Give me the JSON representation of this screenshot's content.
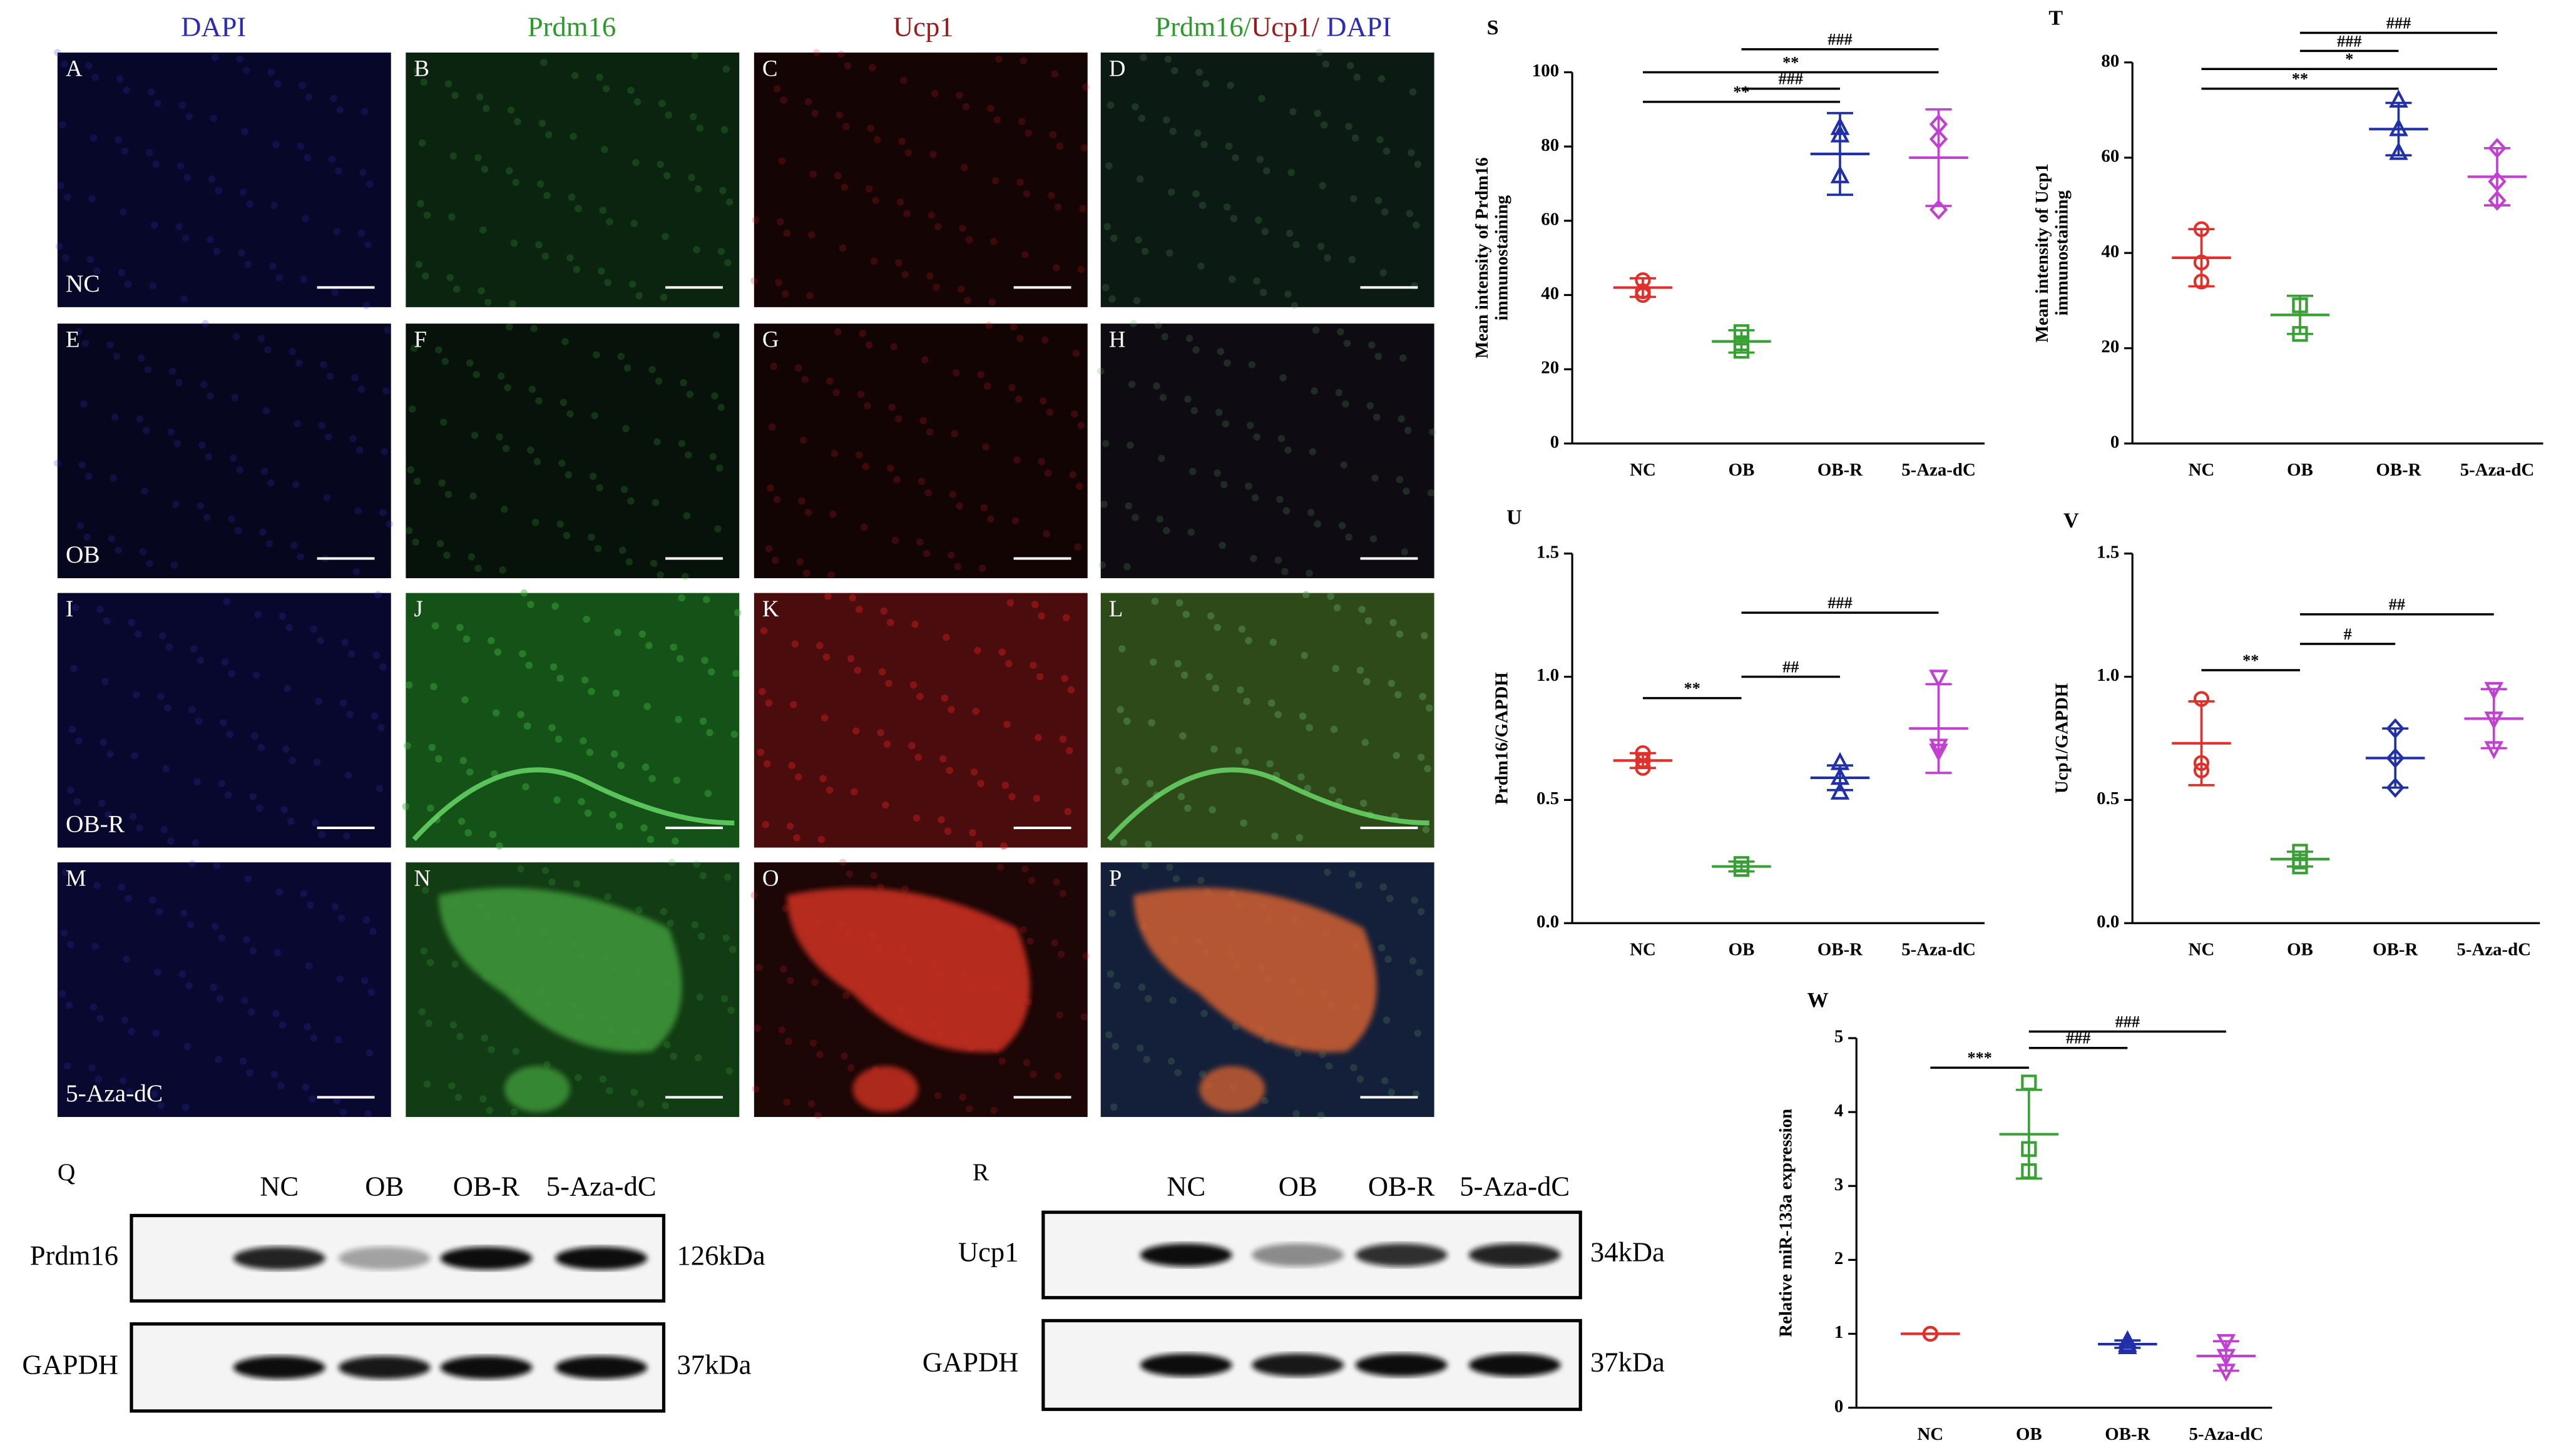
{
  "micrographs": {
    "columns": [
      "DAPI",
      "Prdm16",
      "Ucp1"
    ],
    "merged_column": [
      "Prdm16/",
      "Ucp1/",
      " DAPI"
    ],
    "column_colors": [
      "#2b2bb8",
      "#2a9a2a",
      "#a01818"
    ],
    "rows": [
      "NC",
      "OB",
      "OB-R",
      "5-Aza-dC"
    ],
    "panels": [
      "A",
      "B",
      "C",
      "D",
      "E",
      "F",
      "G",
      "H",
      "I",
      "J",
      "K",
      "L",
      "M",
      "N",
      "O",
      "P"
    ]
  },
  "blots": [
    {
      "panel": "Q",
      "lanes": [
        "NC",
        "OB",
        "OB-R",
        "5-Aza-dC"
      ],
      "rows": [
        {
          "protein": "Prdm16",
          "size": "126kDa"
        },
        {
          "protein": "GAPDH",
          "size": "37kDa"
        }
      ]
    },
    {
      "panel": "R",
      "lanes": [
        "NC",
        "OB",
        "OB-R",
        "5-Aza-dC"
      ],
      "rows": [
        {
          "protein": "Ucp1",
          "size": "34kDa"
        },
        {
          "protein": "GAPDH",
          "size": "37kDa"
        }
      ]
    }
  ],
  "chart_data": [
    {
      "type": "scatter",
      "panel": "S",
      "y_label": [
        "Mean intensity of Prdm16",
        "immunostaining"
      ],
      "categories": [
        "NC",
        "OB",
        "OB-R",
        "5-Aza-dC"
      ],
      "ylim": [
        0,
        100
      ],
      "yticks": [
        0,
        20,
        40,
        60,
        80,
        100
      ],
      "series": [
        {
          "color": "#e0302a",
          "marker": "circle",
          "values": [
            44,
            41,
            40
          ],
          "mean": 42,
          "sd": 2.5
        },
        {
          "color": "#38a035",
          "marker": "square",
          "values": [
            30,
            27,
            25
          ],
          "mean": 27.5,
          "sd": 3
        },
        {
          "color": "#2030a8",
          "marker": "triangle",
          "values": [
            85,
            83,
            72
          ],
          "mean": 78,
          "sd": 11
        },
        {
          "color": "#c040d0",
          "marker": "diamond",
          "values": [
            86,
            82,
            63
          ],
          "mean": 77,
          "sd": 13
        }
      ],
      "significance": [
        {
          "between": [
            "NC",
            "OB-R"
          ],
          "label": "**"
        },
        {
          "between": [
            "OB",
            "OB-R"
          ],
          "label": "###"
        },
        {
          "between": [
            "NC",
            "5-Aza-dC"
          ],
          "label": "**"
        },
        {
          "between": [
            "OB",
            "5-Aza-dC"
          ],
          "label": "###"
        }
      ]
    },
    {
      "type": "scatter",
      "panel": "T",
      "y_label": [
        "Mean intensity of Ucp1",
        "immunostaining"
      ],
      "categories": [
        "NC",
        "OB",
        "OB-R",
        "5-Aza-dC"
      ],
      "ylim": [
        0,
        80
      ],
      "yticks": [
        0,
        20,
        40,
        60,
        80
      ],
      "series": [
        {
          "color": "#e0302a",
          "marker": "circle",
          "values": [
            45,
            38,
            34
          ],
          "mean": 39,
          "sd": 6
        },
        {
          "color": "#38a035",
          "marker": "square",
          "values": [
            29,
            29,
            23
          ],
          "mean": 27,
          "sd": 4
        },
        {
          "color": "#2030a8",
          "marker": "triangle",
          "values": [
            72,
            66,
            61
          ],
          "mean": 66,
          "sd": 5.5
        },
        {
          "color": "#c040d0",
          "marker": "diamond",
          "values": [
            62,
            55,
            51
          ],
          "mean": 56,
          "sd": 6
        }
      ],
      "significance": [
        {
          "between": [
            "NC",
            "OB-R"
          ],
          "label": "**"
        },
        {
          "between": [
            "NC",
            "5-Aza-dC"
          ],
          "label": "*"
        },
        {
          "between": [
            "OB",
            "OB-R"
          ],
          "label": "###"
        },
        {
          "between": [
            "OB",
            "5-Aza-dC"
          ],
          "label": "###"
        }
      ]
    },
    {
      "type": "scatter",
      "panel": "U",
      "y_label": [
        "Prdm16/GAPDH"
      ],
      "categories": [
        "NC",
        "OB",
        "OB-R",
        "5-Aza-dC"
      ],
      "ylim": [
        0,
        1.5
      ],
      "yticks": [
        {
          "value": 0,
          "label": "0.0"
        },
        0.5,
        {
          "value": 1,
          "label": "1.0"
        },
        1.5
      ],
      "series": [
        {
          "color": "#e0302a",
          "marker": "circle",
          "values": [
            0.69,
            0.66,
            0.63
          ],
          "mean": 0.66,
          "sd": 0.03
        },
        {
          "color": "#38a035",
          "marker": "square",
          "values": [
            0.24,
            0.22,
            0.22
          ],
          "mean": 0.23,
          "sd": 0.02
        },
        {
          "color": "#2030a8",
          "marker": "triangle",
          "values": [
            0.65,
            0.59,
            0.53
          ],
          "mean": 0.59,
          "sd": 0.05
        },
        {
          "color": "#c040d0",
          "marker": "triangle-down",
          "values": [
            1.0,
            0.72,
            0.7
          ],
          "mean": 0.79,
          "sd": 0.18
        }
      ],
      "significance": [
        {
          "between": [
            "NC",
            "OB"
          ],
          "label": "**"
        },
        {
          "between": [
            "OB",
            "OB-R"
          ],
          "label": "##"
        },
        {
          "between": [
            "OB",
            "5-Aza-dC"
          ],
          "label": "###"
        }
      ]
    },
    {
      "type": "scatter",
      "panel": "V",
      "y_label": [
        "Ucp1/GAPDH"
      ],
      "categories": [
        "NC",
        "OB",
        "OB-R",
        "5-Aza-dC"
      ],
      "ylim": [
        0,
        1.5
      ],
      "yticks": [
        {
          "value": 0,
          "label": "0.0"
        },
        0.5,
        {
          "value": 1,
          "label": "1.0"
        },
        1.5
      ],
      "series": [
        {
          "color": "#e0302a",
          "marker": "circle",
          "values": [
            0.91,
            0.65,
            0.62
          ],
          "mean": 0.73,
          "sd": 0.17
        },
        {
          "color": "#38a035",
          "marker": "square",
          "values": [
            0.29,
            0.25,
            0.23
          ],
          "mean": 0.26,
          "sd": 0.03
        },
        {
          "color": "#2030a8",
          "marker": "diamond",
          "values": [
            0.79,
            0.67,
            0.55
          ],
          "mean": 0.67,
          "sd": 0.12
        },
        {
          "color": "#c040d0",
          "marker": "triangle-down",
          "values": [
            0.95,
            0.83,
            0.71
          ],
          "mean": 0.83,
          "sd": 0.12
        }
      ],
      "significance": [
        {
          "between": [
            "NC",
            "OB"
          ],
          "label": "**"
        },
        {
          "between": [
            "OB",
            "OB-R"
          ],
          "label": "#"
        },
        {
          "between": [
            "OB",
            "5-Aza-dC"
          ],
          "label": "##"
        }
      ]
    },
    {
      "type": "scatter",
      "panel": "W",
      "y_label": [
        "Relative miR-133a expression"
      ],
      "categories": [
        "NC",
        "OB",
        "OB-R",
        "5-Aza-dC"
      ],
      "ylim": [
        0,
        5
      ],
      "yticks": [
        0,
        1,
        2,
        3,
        4,
        5
      ],
      "series": [
        {
          "color": "#e0302a",
          "marker": "circle",
          "values": [
            1,
            1,
            1
          ],
          "mean": 1,
          "sd": 0
        },
        {
          "color": "#38a035",
          "marker": "square",
          "values": [
            4.4,
            3.5,
            3.2
          ],
          "mean": 3.7,
          "sd": 0.6
        },
        {
          "color": "#2030a8",
          "marker": "triangle",
          "values": [
            0.9,
            0.85,
            0.82
          ],
          "mean": 0.86,
          "sd": 0.05
        },
        {
          "color": "#c040d0",
          "marker": "triangle-down",
          "values": [
            0.9,
            0.7,
            0.5
          ],
          "mean": 0.7,
          "sd": 0.2
        }
      ],
      "significance": [
        {
          "between": [
            "NC",
            "OB"
          ],
          "label": "***"
        },
        {
          "between": [
            "OB",
            "OB-R"
          ],
          "label": "###"
        },
        {
          "between": [
            "OB",
            "5-Aza-dC"
          ],
          "label": "###"
        }
      ]
    }
  ]
}
